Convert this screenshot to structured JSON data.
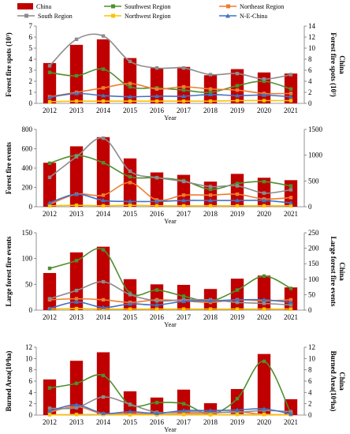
{
  "legend": [
    {
      "name": "China",
      "color": "#C00000",
      "kind": "bar"
    },
    {
      "name": "Southwest Region",
      "color": "#4E8F2F",
      "kind": "line",
      "marker": "square"
    },
    {
      "name": "Northeast Region",
      "color": "#ED7D31",
      "kind": "line",
      "marker": "square"
    },
    {
      "name": "South Region",
      "color": "#8C8C8C",
      "kind": "line",
      "marker": "square"
    },
    {
      "name": "Northwest Region",
      "color": "#FFC000",
      "kind": "line",
      "marker": "square"
    },
    {
      "name": "N-E-China",
      "color": "#4472C4",
      "kind": "line",
      "marker": "triangle"
    }
  ],
  "chart_data": [
    {
      "type": "bar",
      "xlabel": "Year",
      "ylabel": "Forest fire spots (10³)",
      "y2label_lines": [
        "Forest fire spots (10³)",
        "China"
      ],
      "categories": [
        "2012",
        "2013",
        "2014",
        "2015",
        "2016",
        "2017",
        "2018",
        "2019",
        "2020",
        "2021"
      ],
      "ylim": [
        0,
        7
      ],
      "yticks": [
        0,
        1,
        2,
        3,
        4,
        5,
        6,
        7
      ],
      "y2lim": [
        0,
        14
      ],
      "y2ticks": [
        0,
        2,
        4,
        6,
        8,
        10,
        12,
        14
      ],
      "bar_axis": "right",
      "series": [
        {
          "name": "China",
          "axis": "right",
          "values": [
            7.3,
            10.6,
            11.6,
            8.2,
            6.4,
            6.6,
            5.1,
            6.2,
            5.6,
            5.4
          ]
        },
        {
          "name": "Southwest Region",
          "axis": "left",
          "values": [
            2.8,
            2.5,
            3.1,
            1.5,
            1.4,
            1.2,
            1.0,
            1.6,
            2.0,
            1.3
          ]
        },
        {
          "name": "Northeast Region",
          "axis": "left",
          "values": [
            0.6,
            1.0,
            1.4,
            1.8,
            1.3,
            1.5,
            1.3,
            1.2,
            0.9,
            0.9
          ]
        },
        {
          "name": "South Region",
          "axis": "left",
          "values": [
            3.4,
            5.8,
            6.1,
            3.8,
            3.2,
            3.2,
            2.6,
            2.7,
            2.2,
            2.6
          ]
        },
        {
          "name": "Northwest Region",
          "axis": "left",
          "values": [
            0.15,
            0.2,
            0.2,
            0.2,
            0.2,
            0.2,
            0.2,
            0.25,
            0.25,
            0.25
          ]
        },
        {
          "name": "N-E-China",
          "axis": "left",
          "values": [
            0.55,
            0.9,
            0.7,
            0.6,
            0.65,
            0.65,
            0.8,
            0.7,
            0.75,
            0.6
          ]
        }
      ]
    },
    {
      "type": "bar",
      "xlabel": "Year",
      "ylabel": "Forest fire events",
      "categories": [
        "2012",
        "2013",
        "2014",
        "2015",
        "2016",
        "2017",
        "2018",
        "2019",
        "2020",
        "2021"
      ],
      "ylim": [
        0,
        800
      ],
      "yticks": [
        0,
        200,
        400,
        600,
        800
      ],
      "y2lim": [
        0,
        1500
      ],
      "y2ticks": [
        0,
        500,
        1000,
        1500
      ],
      "bar_axis": "left",
      "series": [
        {
          "name": "China",
          "axis": "left",
          "values": [
            455,
            625,
            720,
            500,
            355,
            330,
            260,
            340,
            300,
            275
          ]
        },
        {
          "name": "Southwest Region",
          "axis": "left",
          "values": [
            450,
            530,
            455,
            310,
            300,
            270,
            180,
            240,
            260,
            215
          ]
        },
        {
          "name": "Northeast Region",
          "axis": "left",
          "values": [
            25,
            130,
            120,
            250,
            70,
            120,
            120,
            130,
            80,
            95
          ]
        },
        {
          "name": "South Region",
          "axis": "right",
          "values": [
            570,
            970,
            1330,
            690,
            565,
            490,
            390,
            405,
            265,
            330
          ]
        },
        {
          "name": "Northwest Region",
          "axis": "left",
          "values": [
            10,
            15,
            10,
            15,
            10,
            10,
            10,
            10,
            10,
            10
          ]
        },
        {
          "name": "N-E-China",
          "axis": "left",
          "values": [
            40,
            130,
            65,
            55,
            55,
            65,
            65,
            65,
            65,
            40
          ]
        }
      ]
    },
    {
      "type": "bar",
      "xlabel": "Year",
      "ylabel": "Large forest fire events",
      "y2label_lines": [
        "Large forest fire events",
        "China"
      ],
      "categories": [
        "2012",
        "2013",
        "2014",
        "2015",
        "2016",
        "2017",
        "2018",
        "2019",
        "2020",
        "2021"
      ],
      "ylim": [
        0,
        150
      ],
      "yticks": [
        0,
        50,
        100,
        150
      ],
      "y2lim": [
        0,
        250
      ],
      "y2ticks": [
        0,
        50,
        100,
        150,
        200,
        250
      ],
      "bar_axis": "left",
      "series": [
        {
          "name": "China",
          "axis": "left",
          "values": [
            72,
            112,
            123,
            60,
            50,
            49,
            41,
            61,
            67,
            44
          ]
        },
        {
          "name": "Southwest Region",
          "axis": "right",
          "values": [
            135,
            160,
            195,
            55,
            65,
            45,
            30,
            65,
            110,
            70
          ]
        },
        {
          "name": "Northeast Region",
          "axis": "left",
          "values": [
            20,
            22,
            20,
            15,
            20,
            18,
            15,
            20,
            18,
            20
          ]
        },
        {
          "name": "South Region",
          "axis": "left",
          "values": [
            22,
            38,
            55,
            30,
            18,
            20,
            20,
            15,
            13,
            10
          ]
        },
        {
          "name": "Northwest Region",
          "axis": "left",
          "values": [
            2,
            3,
            2,
            2,
            2,
            2,
            2,
            2,
            2,
            2
          ]
        },
        {
          "name": "N-E-China",
          "axis": "left",
          "values": [
            3,
            16,
            5,
            12,
            10,
            17,
            18,
            20,
            20,
            15
          ]
        }
      ]
    },
    {
      "type": "bar",
      "xlabel": "Year",
      "ylabel": "Burned Area(10⁴ha)",
      "y2label_lines": [
        "Burned Area(10⁴ha)",
        "China"
      ],
      "categories": [
        "2012",
        "2013",
        "2014",
        "2015",
        "2016",
        "2017",
        "2018",
        "2019",
        "2020",
        "2021"
      ],
      "ylim": [
        0,
        12
      ],
      "yticks": [
        0,
        2,
        4,
        6,
        8,
        10,
        12
      ],
      "y2lim": [
        0,
        12
      ],
      "y2ticks": [
        0,
        2,
        4,
        6,
        8,
        10,
        12
      ],
      "bar_axis": "left",
      "series": [
        {
          "name": "China",
          "axis": "left",
          "values": [
            6.3,
            9.6,
            11.1,
            4.2,
            3.1,
            4.5,
            2.1,
            4.6,
            10.8,
            2.8
          ]
        },
        {
          "name": "Southwest Region",
          "axis": "left",
          "values": [
            4.8,
            5.6,
            7.0,
            1.8,
            2.2,
            2.0,
            0.2,
            2.9,
            9.5,
            0.3
          ]
        },
        {
          "name": "Northeast Region",
          "axis": "left",
          "values": [
            0.5,
            1.5,
            0.2,
            0.3,
            0.1,
            0.3,
            0.3,
            0.6,
            0.1,
            0.1
          ]
        },
        {
          "name": "South Region",
          "axis": "left",
          "values": [
            1.2,
            1.3,
            3.2,
            1.9,
            0.5,
            0.6,
            0.5,
            0.5,
            0.8,
            0.6
          ]
        },
        {
          "name": "Northwest Region",
          "axis": "left",
          "values": [
            0.05,
            0.1,
            0.1,
            0.05,
            0.05,
            0.1,
            0.05,
            0.1,
            0.1,
            0.05
          ]
        },
        {
          "name": "N-E-China",
          "axis": "left",
          "values": [
            0.7,
            1.8,
            0.3,
            0.6,
            0.3,
            0.8,
            0.8,
            0.9,
            1.1,
            0.2
          ]
        }
      ]
    }
  ]
}
